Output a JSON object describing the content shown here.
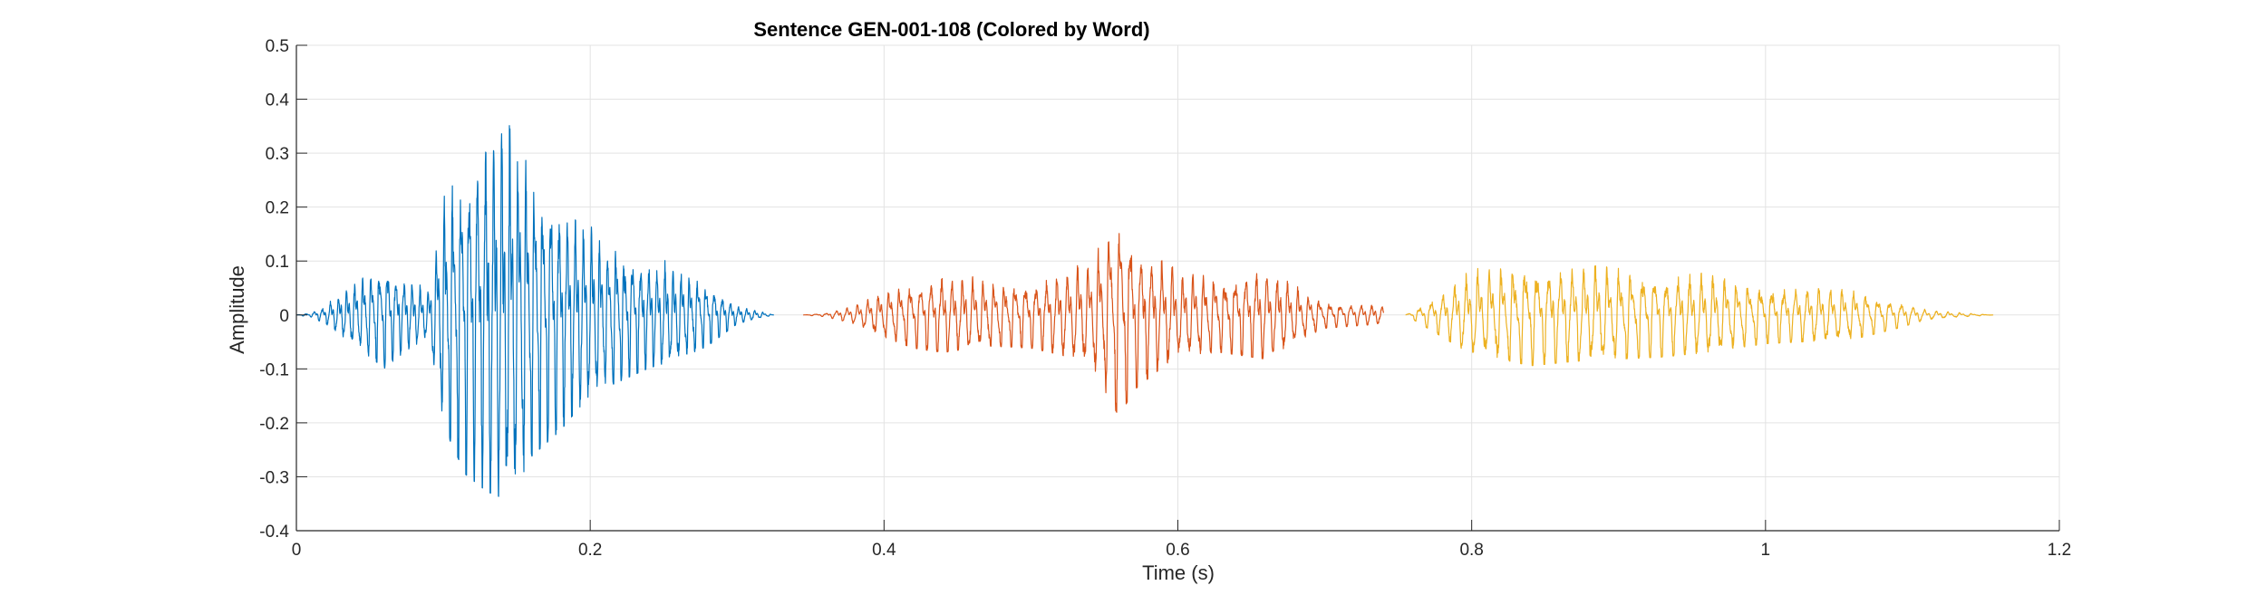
{
  "chart_data": {
    "type": "line",
    "title": "Sentence GEN-001-108 (Colored by Word)",
    "xlabel": "Time (s)",
    "ylabel": "Amplitude",
    "xlim": [
      0,
      1.2
    ],
    "ylim": [
      -0.4,
      0.5
    ],
    "xticks": [
      0,
      0.2,
      0.4,
      0.6,
      0.8,
      1,
      1.2
    ],
    "xtick_labels": [
      "0",
      "0.2",
      "0.4",
      "0.6",
      "0.8",
      "1",
      "1.2"
    ],
    "yticks": [
      -0.4,
      -0.3,
      -0.2,
      -0.1,
      0,
      0.1,
      0.2,
      0.3,
      0.4,
      0.5
    ],
    "ytick_labels": [
      "-0.4",
      "-0.3",
      "-0.2",
      "-0.1",
      "0",
      "0.1",
      "0.2",
      "0.3",
      "0.4",
      "0.5"
    ],
    "grid": true,
    "legend": "none",
    "series": [
      {
        "color": "#0072BD",
        "t_start": 0.0,
        "t_end": 0.325,
        "freq_hz": 180,
        "envelope": [
          [
            0.0,
            0.0
          ],
          [
            0.01,
            0.005
          ],
          [
            0.02,
            0.02
          ],
          [
            0.04,
            0.07
          ],
          [
            0.06,
            0.12
          ],
          [
            0.075,
            0.08
          ],
          [
            0.09,
            0.05
          ],
          [
            0.1,
            0.25
          ],
          [
            0.115,
            0.36
          ],
          [
            0.13,
            0.4
          ],
          [
            0.145,
            0.42
          ],
          [
            0.16,
            0.32
          ],
          [
            0.18,
            0.26
          ],
          [
            0.2,
            0.18
          ],
          [
            0.22,
            0.15
          ],
          [
            0.24,
            0.12
          ],
          [
            0.26,
            0.1
          ],
          [
            0.28,
            0.07
          ],
          [
            0.3,
            0.02
          ],
          [
            0.325,
            0.0
          ]
        ]
      },
      {
        "color": "#D95319",
        "t_start": 0.345,
        "t_end": 0.74,
        "freq_hz": 140,
        "envelope": [
          [
            0.345,
            0.0
          ],
          [
            0.36,
            0.004
          ],
          [
            0.38,
            0.02
          ],
          [
            0.4,
            0.05
          ],
          [
            0.42,
            0.075
          ],
          [
            0.44,
            0.085
          ],
          [
            0.47,
            0.07
          ],
          [
            0.5,
            0.075
          ],
          [
            0.52,
            0.09
          ],
          [
            0.54,
            0.11
          ],
          [
            0.555,
            0.2
          ],
          [
            0.56,
            0.23
          ],
          [
            0.57,
            0.17
          ],
          [
            0.6,
            0.09
          ],
          [
            0.63,
            0.085
          ],
          [
            0.66,
            0.1
          ],
          [
            0.68,
            0.06
          ],
          [
            0.7,
            0.03
          ],
          [
            0.72,
            0.025
          ],
          [
            0.74,
            0.02
          ]
        ]
      },
      {
        "color": "#EDB120",
        "t_start": 0.755,
        "t_end": 1.155,
        "freq_hz": 125,
        "envelope": [
          [
            0.755,
            0.0
          ],
          [
            0.765,
            0.02
          ],
          [
            0.78,
            0.05
          ],
          [
            0.8,
            0.09
          ],
          [
            0.82,
            0.1
          ],
          [
            0.84,
            0.115
          ],
          [
            0.87,
            0.105
          ],
          [
            0.9,
            0.1
          ],
          [
            0.93,
            0.095
          ],
          [
            0.96,
            0.085
          ],
          [
            1.0,
            0.065
          ],
          [
            1.03,
            0.06
          ],
          [
            1.06,
            0.055
          ],
          [
            1.09,
            0.03
          ],
          [
            1.11,
            0.01
          ],
          [
            1.13,
            0.005
          ],
          [
            1.155,
            0.0
          ]
        ]
      }
    ]
  }
}
